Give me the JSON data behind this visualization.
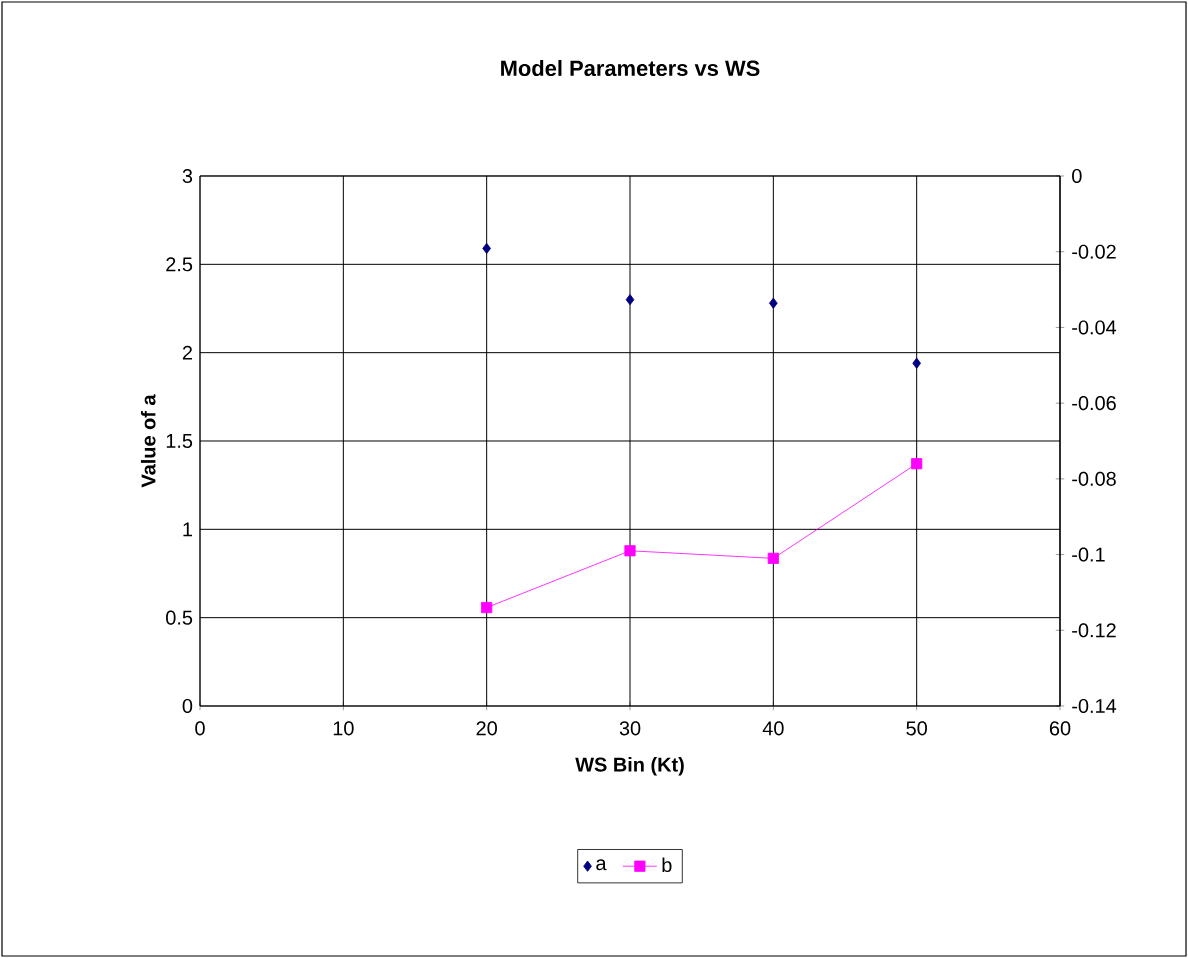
{
  "chart_data": {
    "type": "scatter",
    "title": "Model Parameters vs WS",
    "xlabel": "WS Bin (Kt)",
    "ylabel": "Value of a",
    "x": [
      20,
      30,
      40,
      50
    ],
    "series": [
      {
        "name": "a",
        "marker": "diamond",
        "color": "#000080",
        "values": [
          2.59,
          2.3,
          2.28,
          1.94
        ]
      },
      {
        "name": "b",
        "type": "line",
        "marker": "square",
        "axis": "y2",
        "color": "#ff00ff",
        "values": [
          -0.114,
          -0.099,
          -0.101,
          -0.076
        ]
      }
    ],
    "xlim": [
      0,
      60
    ],
    "xticks": [
      0,
      10,
      20,
      30,
      40,
      50,
      60
    ],
    "ylim": [
      0,
      3
    ],
    "yticks": [
      0,
      0.5,
      1,
      1.5,
      2,
      2.5,
      3
    ],
    "y2lim": [
      -0.14,
      0
    ],
    "y2ticks": [
      -0.14,
      -0.12,
      -0.1,
      -0.08,
      -0.06,
      -0.04,
      -0.02,
      0
    ],
    "grid": true,
    "legend": "bottom"
  }
}
